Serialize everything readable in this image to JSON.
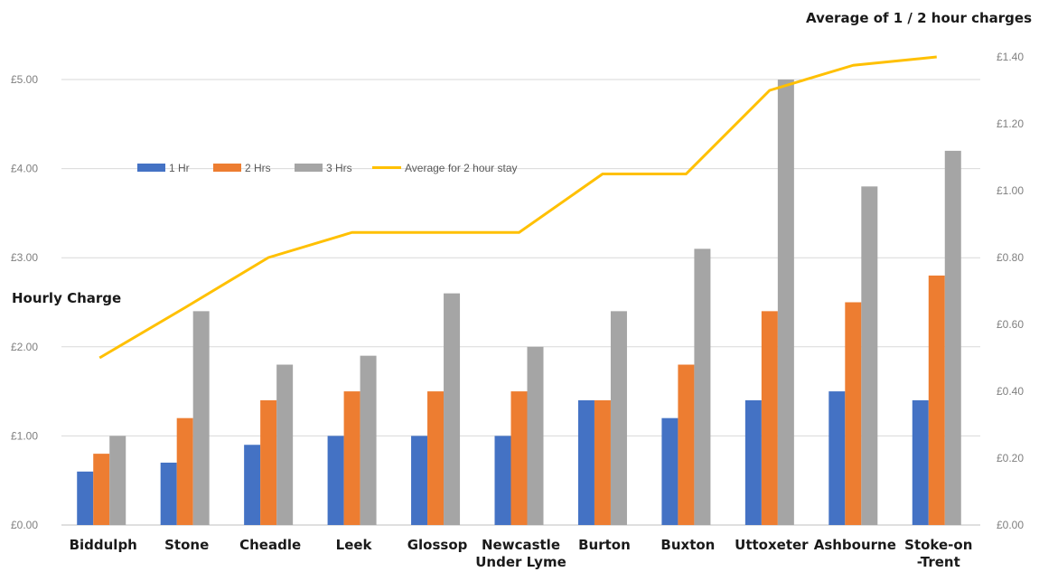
{
  "chart_data": {
    "type": "bar",
    "title": "",
    "left_axis": {
      "title": "Hourly Charge",
      "min": 0,
      "max": 5,
      "step": 1,
      "tick_labels": [
        "£0.00",
        "£1.00",
        "£2.00",
        "£3.00",
        "£4.00",
        "£5.00"
      ]
    },
    "right_axis": {
      "title": "Average of 1 / 2 hour charges",
      "min": 0,
      "max": 1.4,
      "step": 0.2,
      "tick_labels": [
        "£0.00",
        "£0.20",
        "£0.40",
        "£0.60",
        "£0.80",
        "£1.00",
        "£1.20",
        "£1.40"
      ]
    },
    "categories": [
      [
        "Biddulph"
      ],
      [
        "Stone"
      ],
      [
        "Cheadle"
      ],
      [
        "Leek"
      ],
      [
        "Glossop"
      ],
      [
        "Newcastle",
        "Under Lyme"
      ],
      [
        "Burton"
      ],
      [
        "Buxton"
      ],
      [
        "Uttoxeter"
      ],
      [
        "Ashbourne"
      ],
      [
        "Stoke-on",
        "-Trent"
      ]
    ],
    "series": [
      {
        "name": "1 Hr",
        "type": "bar",
        "axis": "left",
        "color": "#4472c4",
        "values": [
          0.6,
          0.7,
          0.9,
          1.0,
          1.0,
          1.0,
          1.4,
          1.2,
          1.4,
          1.5,
          1.4
        ]
      },
      {
        "name": "2 Hrs",
        "type": "bar",
        "axis": "left",
        "color": "#ed7d31",
        "values": [
          0.8,
          1.2,
          1.4,
          1.5,
          1.5,
          1.5,
          1.4,
          1.8,
          2.4,
          2.5,
          2.8
        ]
      },
      {
        "name": "3 Hrs",
        "type": "bar",
        "axis": "left",
        "color": "#a5a5a5",
        "values": [
          1.0,
          2.4,
          1.8,
          1.9,
          2.6,
          2.0,
          2.4,
          3.1,
          5.0,
          3.8,
          4.2
        ]
      },
      {
        "name": "Average for 2 hour stay",
        "type": "line",
        "axis": "right",
        "color": "#ffc000",
        "values": [
          0.5,
          0.65,
          0.8,
          0.875,
          0.875,
          0.875,
          1.05,
          1.05,
          1.3,
          1.375,
          1.4
        ]
      }
    ],
    "grid": true,
    "legend_position": "top-left"
  }
}
